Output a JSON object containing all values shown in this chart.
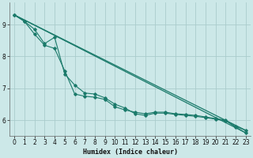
{
  "xlabel": "Humidex (Indice chaleur)",
  "bg_color": "#cce8e8",
  "grid_color": "#aacccc",
  "line_color": "#1a7a6a",
  "xlim": [
    -0.5,
    23.5
  ],
  "ylim": [
    5.5,
    9.7
  ],
  "yticks": [
    6,
    7,
    8,
    9
  ],
  "xticks": [
    0,
    1,
    2,
    3,
    4,
    5,
    6,
    7,
    8,
    9,
    10,
    11,
    12,
    13,
    14,
    15,
    16,
    17,
    18,
    19,
    20,
    21,
    22,
    23
  ],
  "series1_x": [
    0,
    1,
    2,
    3,
    4,
    5,
    6,
    7,
    8,
    9,
    10,
    11,
    12,
    13,
    14,
    15,
    16,
    17,
    18,
    19,
    20,
    21,
    22,
    23
  ],
  "series1_y": [
    9.3,
    9.1,
    8.7,
    8.35,
    8.25,
    7.55,
    6.82,
    6.75,
    6.72,
    6.65,
    6.42,
    6.32,
    6.25,
    6.2,
    6.25,
    6.25,
    6.2,
    6.18,
    6.15,
    6.1,
    6.05,
    6.0,
    5.8,
    5.68
  ],
  "series2_x": [
    0,
    1,
    2,
    3,
    4,
    5,
    6,
    7,
    8,
    9,
    10,
    11,
    12,
    13,
    14,
    15,
    16,
    17,
    18,
    19,
    20,
    21,
    22,
    23
  ],
  "series2_y": [
    9.3,
    9.1,
    8.85,
    8.4,
    8.6,
    7.45,
    7.1,
    6.85,
    6.82,
    6.7,
    6.5,
    6.38,
    6.2,
    6.15,
    6.22,
    6.22,
    6.18,
    6.15,
    6.12,
    6.08,
    6.03,
    5.98,
    5.78,
    5.6
  ],
  "series3_x": [
    0,
    23
  ],
  "series3_y": [
    9.3,
    5.68
  ],
  "series4_x": [
    0,
    23
  ],
  "series4_y": [
    9.3,
    5.6
  ],
  "xlabel_fontsize": 6,
  "tick_fontsize": 5.5
}
